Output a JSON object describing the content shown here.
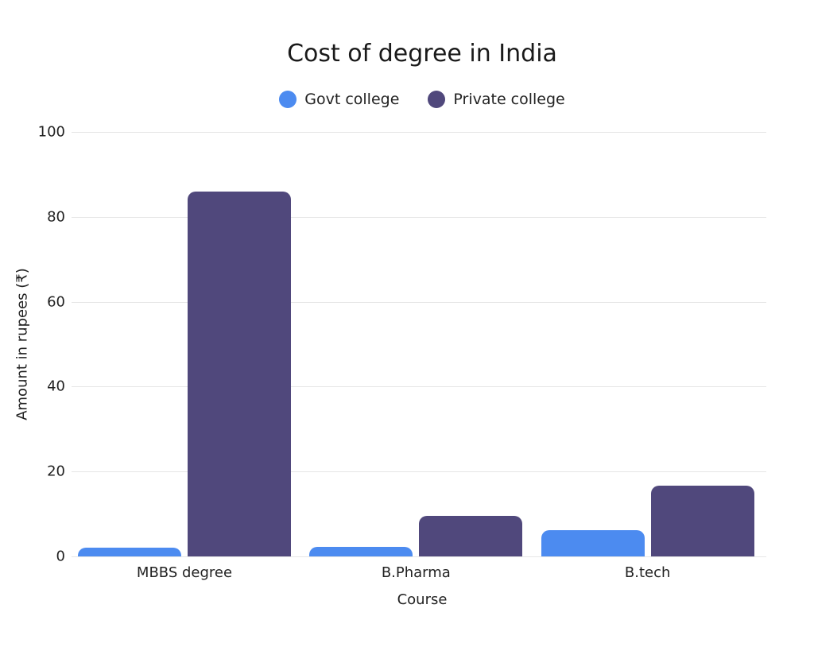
{
  "chart_data": {
    "type": "bar",
    "title": "Cost of degree in India",
    "xlabel": "Course",
    "ylabel": "Amount in rupees (₹)",
    "ylim": [
      0,
      100
    ],
    "yticks": [
      "0",
      "20",
      "40",
      "60",
      "80",
      "100"
    ],
    "categories": [
      "MBBS degree",
      "B.Pharma",
      "B.tech"
    ],
    "series": [
      {
        "name": "Govt college",
        "color": "#4C8BF0",
        "values": [
          2,
          2.2,
          6.2
        ]
      },
      {
        "name": "Private college",
        "color": "#50487C",
        "values": [
          86,
          9.5,
          16.7
        ]
      }
    ],
    "grid": true,
    "legend_position": "top"
  }
}
